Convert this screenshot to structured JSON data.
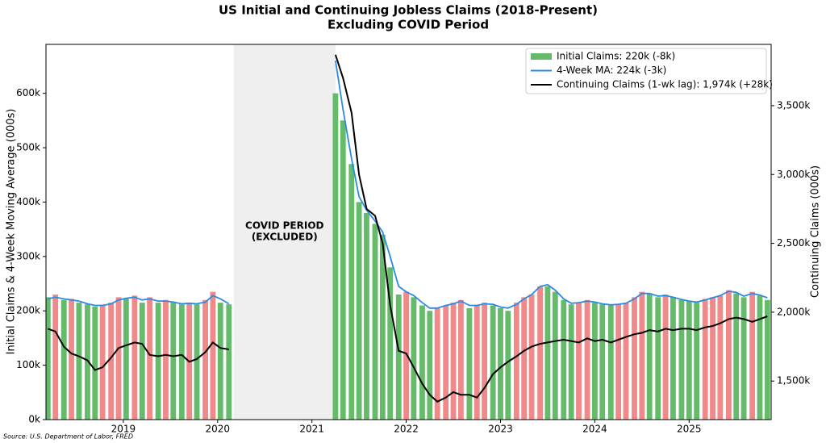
{
  "chart_data": {
    "type": "bar-line-combo",
    "title": [
      "US Initial and Continuing Jobless Claims (2018-Present)",
      "Excluding COVID Period"
    ],
    "ylabel": "Initial Claims & 4-Week Moving Average (000s)",
    "y2label": "Continuing Claims (000s)",
    "source": "Source: U.S. Department of Labor, FRED",
    "annotation": {
      "lines": [
        "COVID PERIOD",
        "(EXCLUDED)"
      ],
      "span": [
        2020.17,
        2021.25
      ],
      "color": "#8b0000",
      "shade": "#efefef"
    },
    "xlim": [
      2018.18,
      2025.87
    ],
    "xticks": [
      2019,
      2020,
      2021,
      2022,
      2023,
      2024,
      2025
    ],
    "ylim": [
      0,
      690
    ],
    "yticks": [
      {
        "value": 0,
        "label": "0k"
      },
      {
        "value": 100,
        "label": "100k"
      },
      {
        "value": 200,
        "label": "200k"
      },
      {
        "value": 300,
        "label": "300k"
      },
      {
        "value": 400,
        "label": "400k"
      },
      {
        "value": 500,
        "label": "500k"
      },
      {
        "value": 600,
        "label": "600k"
      }
    ],
    "y2lim": [
      1220,
      3945
    ],
    "y2ticks": [
      {
        "value": 1500,
        "label": "1,500k"
      },
      {
        "value": 2000,
        "label": "2,000k"
      },
      {
        "value": 2500,
        "label": "2,500k"
      },
      {
        "value": 3000,
        "label": "3,000k"
      },
      {
        "value": 3500,
        "label": "3,500k"
      }
    ],
    "legend": "upper right",
    "rise_color": "#f08a8a",
    "x": [
      2018.2,
      2018.28,
      2018.37,
      2018.45,
      2018.53,
      2018.62,
      2018.7,
      2018.78,
      2018.87,
      2018.95,
      2019.03,
      2019.12,
      2019.2,
      2019.28,
      2019.37,
      2019.45,
      2019.53,
      2019.62,
      2019.7,
      2019.78,
      2019.87,
      2019.95,
      2020.03,
      2020.12,
      2020.7,
      2021.25,
      2021.33,
      2021.42,
      2021.5,
      2021.58,
      2021.67,
      2021.75,
      2021.83,
      2021.92,
      2022.0,
      2022.08,
      2022.17,
      2022.25,
      2022.33,
      2022.42,
      2022.5,
      2022.58,
      2022.67,
      2022.75,
      2022.83,
      2022.92,
      2023.0,
      2023.08,
      2023.17,
      2023.25,
      2023.33,
      2023.42,
      2023.5,
      2023.58,
      2023.67,
      2023.75,
      2023.83,
      2023.92,
      2024.0,
      2024.08,
      2024.17,
      2024.25,
      2024.33,
      2024.42,
      2024.5,
      2024.58,
      2024.67,
      2024.75,
      2024.83,
      2024.92,
      2025.0,
      2025.08,
      2025.17,
      2025.25,
      2025.33,
      2025.42,
      2025.5,
      2025.58,
      2025.67,
      2025.75,
      2025.83
    ],
    "series": [
      {
        "name": "Initial Claims: 220k (-8k)",
        "kind": "bar",
        "color": "#66bb6a",
        "values": [
          225,
          230,
          220,
          222,
          215,
          212,
          208,
          210,
          215,
          225,
          222,
          228,
          215,
          225,
          215,
          220,
          215,
          212,
          215,
          212,
          220,
          235,
          215,
          212,
          null,
          600,
          550,
          470,
          400,
          380,
          360,
          340,
          280,
          230,
          235,
          225,
          210,
          200,
          205,
          210,
          215,
          220,
          205,
          210,
          215,
          210,
          205,
          200,
          215,
          225,
          230,
          245,
          245,
          235,
          220,
          212,
          215,
          220,
          215,
          212,
          210,
          212,
          215,
          225,
          235,
          232,
          225,
          230,
          225,
          220,
          218,
          215,
          222,
          225,
          228,
          238,
          232,
          225,
          235,
          228,
          220
        ]
      },
      {
        "name": "4-Week MA: 224k (-3k)",
        "kind": "line",
        "color": "#2a8be0",
        "values": [
          222,
          225,
          222,
          220,
          218,
          213,
          210,
          210,
          213,
          220,
          223,
          225,
          220,
          222,
          218,
          218,
          216,
          213,
          214,
          213,
          216,
          228,
          222,
          213,
          null,
          660,
          570,
          480,
          410,
          385,
          365,
          345,
          300,
          245,
          235,
          228,
          215,
          205,
          205,
          210,
          213,
          218,
          210,
          210,
          213,
          212,
          207,
          205,
          212,
          222,
          230,
          245,
          248,
          238,
          222,
          214,
          215,
          218,
          216,
          213,
          211,
          212,
          214,
          222,
          232,
          232,
          227,
          228,
          225,
          221,
          218,
          216,
          220,
          224,
          228,
          236,
          234,
          227,
          232,
          229,
          224
        ]
      },
      {
        "name": "Continuing Claims (1-wk lag): 1,974k (+28k)",
        "kind": "line",
        "axis": "y2",
        "color": "#000000",
        "values": [
          1880,
          1860,
          1750,
          1700,
          1680,
          1650,
          1580,
          1600,
          1670,
          1740,
          1760,
          1780,
          1770,
          1690,
          1680,
          1690,
          1680,
          1690,
          1640,
          1660,
          1710,
          1780,
          1740,
          1730,
          null,
          3870,
          3700,
          3450,
          3000,
          2750,
          2700,
          2500,
          2050,
          1720,
          1700,
          1600,
          1480,
          1400,
          1350,
          1380,
          1420,
          1400,
          1400,
          1380,
          1450,
          1550,
          1600,
          1640,
          1680,
          1720,
          1750,
          1770,
          1780,
          1790,
          1800,
          1790,
          1780,
          1810,
          1790,
          1800,
          1780,
          1800,
          1820,
          1840,
          1850,
          1870,
          1860,
          1880,
          1870,
          1880,
          1880,
          1870,
          1890,
          1900,
          1920,
          1950,
          1960,
          1950,
          1930,
          1950,
          1970
        ]
      }
    ]
  }
}
